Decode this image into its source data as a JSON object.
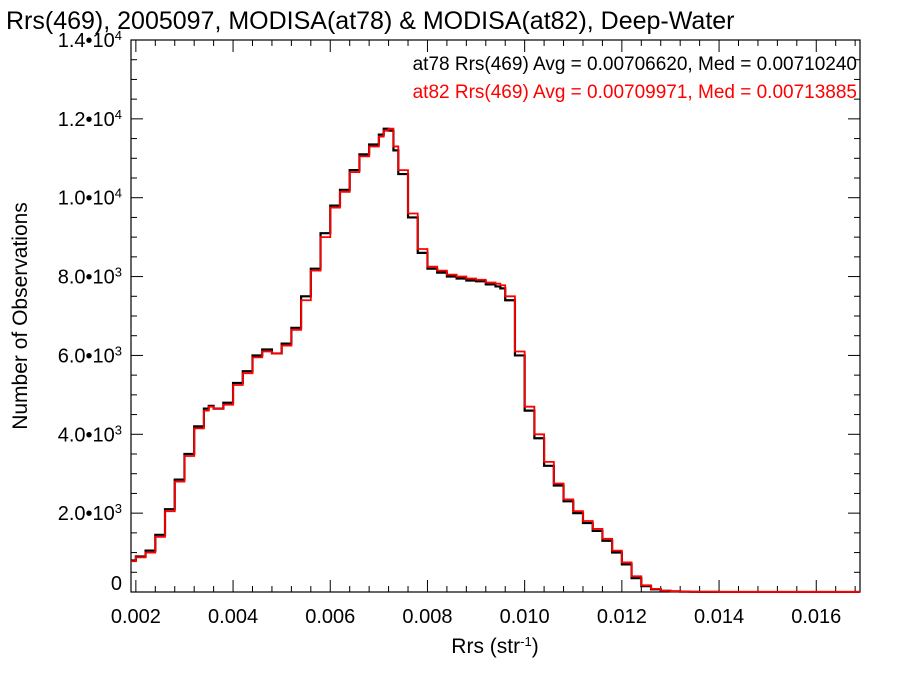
{
  "chart_data": {
    "type": "line",
    "title": "Rrs(469), 2005097, MODISA(at78) & MODISA(at82), Deep-Water",
    "xlabel": "Rrs (str",
    "xlabel_sup": "-1",
    "xlabel_tail": ")",
    "ylabel": "Number of Observations",
    "xlim": [
      0.0019,
      0.0169
    ],
    "ylim": [
      0,
      14000
    ],
    "x_ticks": [
      {
        "value": 0.002,
        "label": "0.002"
      },
      {
        "value": 0.004,
        "label": "0.004"
      },
      {
        "value": 0.006,
        "label": "0.006"
      },
      {
        "value": 0.008,
        "label": "0.008"
      },
      {
        "value": 0.01,
        "label": "0.010"
      },
      {
        "value": 0.012,
        "label": "0.012"
      },
      {
        "value": 0.014,
        "label": "0.014"
      },
      {
        "value": 0.016,
        "label": "0.016"
      }
    ],
    "y_ticks": [
      {
        "value": 0,
        "mant": "0",
        "exp": ""
      },
      {
        "value": 2000,
        "mant": "2.0•10",
        "exp": "3"
      },
      {
        "value": 4000,
        "mant": "4.0•10",
        "exp": "3"
      },
      {
        "value": 6000,
        "mant": "6.0•10",
        "exp": "3"
      },
      {
        "value": 8000,
        "mant": "8.0•10",
        "exp": "3"
      },
      {
        "value": 10000,
        "mant": "1.0•10",
        "exp": "4"
      },
      {
        "value": 12000,
        "mant": "1.2•10",
        "exp": "4"
      },
      {
        "value": 14000,
        "mant": "1.4•10",
        "exp": "4"
      }
    ],
    "legend": [
      {
        "text": "at78 Rrs(469) Avg = 0.00706620, Med = 0.00710240",
        "color": "#000000"
      },
      {
        "text": "at82 Rrs(469) Avg = 0.00709971, Med = 0.00713885",
        "color": "#ff0000"
      }
    ],
    "legend_position": "top-right",
    "step_style": "histogram",
    "series": [
      {
        "color": "#000000",
        "x": [
          0.0019,
          0.002,
          0.0022,
          0.0024,
          0.0026,
          0.0028,
          0.003,
          0.0032,
          0.0034,
          0.0035,
          0.0036,
          0.0038,
          0.004,
          0.0042,
          0.0044,
          0.0046,
          0.0048,
          0.005,
          0.0052,
          0.0054,
          0.0056,
          0.0058,
          0.006,
          0.0062,
          0.0064,
          0.0066,
          0.0068,
          0.007,
          0.0071,
          0.0072,
          0.0073,
          0.0074,
          0.0076,
          0.0078,
          0.008,
          0.0082,
          0.0084,
          0.0086,
          0.0088,
          0.009,
          0.0092,
          0.0094,
          0.0095,
          0.0096,
          0.0098,
          0.01,
          0.0102,
          0.0104,
          0.0106,
          0.0108,
          0.011,
          0.0112,
          0.0114,
          0.0116,
          0.0118,
          0.012,
          0.0122,
          0.0124,
          0.0126,
          0.0128,
          0.013,
          0.0132,
          0.0134,
          0.0136,
          0.014,
          0.015,
          0.0169
        ],
        "y": [
          800,
          900,
          1050,
          1450,
          2100,
          2850,
          3500,
          4200,
          4650,
          4720,
          4650,
          4800,
          5300,
          5600,
          6000,
          6150,
          6050,
          6300,
          6700,
          7500,
          8200,
          9100,
          9800,
          10200,
          10700,
          11100,
          11350,
          11600,
          11750,
          11700,
          11200,
          10600,
          9500,
          8600,
          8200,
          8100,
          8000,
          7950,
          7900,
          7880,
          7800,
          7750,
          7700,
          7400,
          6000,
          4600,
          3900,
          3200,
          2700,
          2300,
          2000,
          1750,
          1550,
          1300,
          1000,
          700,
          350,
          150,
          70,
          30,
          15,
          8,
          5,
          3,
          2,
          1,
          1
        ]
      },
      {
        "color": "#ff0000",
        "x": [
          0.0019,
          0.002,
          0.0022,
          0.0024,
          0.0026,
          0.0028,
          0.003,
          0.0032,
          0.0034,
          0.0035,
          0.0036,
          0.0038,
          0.004,
          0.0042,
          0.0044,
          0.0046,
          0.0048,
          0.005,
          0.0052,
          0.0054,
          0.0056,
          0.0058,
          0.006,
          0.0062,
          0.0064,
          0.0066,
          0.0068,
          0.007,
          0.0071,
          0.0072,
          0.0073,
          0.0074,
          0.0076,
          0.0078,
          0.008,
          0.0082,
          0.0084,
          0.0086,
          0.0088,
          0.009,
          0.0092,
          0.0094,
          0.0095,
          0.0096,
          0.0098,
          0.01,
          0.0102,
          0.0104,
          0.0106,
          0.0108,
          0.011,
          0.0112,
          0.0114,
          0.0116,
          0.0118,
          0.012,
          0.0122,
          0.0124,
          0.0126,
          0.0128,
          0.013,
          0.0132,
          0.0134,
          0.0136,
          0.014,
          0.015,
          0.0169
        ],
        "y": [
          780,
          880,
          1000,
          1400,
          2050,
          2800,
          3450,
          4150,
          4600,
          4700,
          4650,
          4750,
          5250,
          5550,
          5950,
          6100,
          6050,
          6250,
          6650,
          7400,
          8150,
          9000,
          9750,
          10150,
          10650,
          11050,
          11300,
          11550,
          11700,
          11750,
          11300,
          10700,
          9600,
          8700,
          8250,
          8150,
          8050,
          8000,
          7950,
          7920,
          7850,
          7820,
          7780,
          7500,
          6100,
          4700,
          4000,
          3300,
          2750,
          2350,
          2050,
          1800,
          1600,
          1350,
          1050,
          750,
          400,
          170,
          80,
          35,
          18,
          10,
          6,
          4,
          2,
          1,
          1
        ]
      }
    ]
  }
}
